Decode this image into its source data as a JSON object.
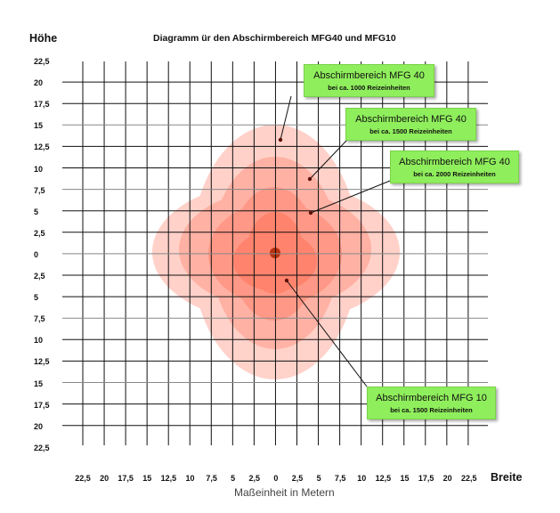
{
  "title": "Diagramm ür den Abschirmbereich MFG40 und MFG10",
  "y_axis_title": "Höhe",
  "x_axis_title": "Breite",
  "unit_label": "Maßeinheit in Metern",
  "y_ticks": [
    "22,5",
    "20",
    "17,5",
    "15",
    "12,5",
    "10",
    "7,5",
    "5",
    "2,5",
    "0",
    "2,5",
    "5",
    "7,5",
    "10",
    "12,5",
    "15",
    "17,5",
    "20",
    "22,5"
  ],
  "x_ticks": [
    "22,5",
    "20",
    "17,5",
    "15",
    "12,5",
    "10",
    "7,5",
    "5",
    "2,5",
    "0",
    "2,5",
    "5",
    "7,5",
    "10",
    "12,5",
    "15",
    "17,5",
    "20",
    "22,5"
  ],
  "callouts": [
    {
      "title": "Abschirmbereich MFG 40",
      "subtitle": "bei ca. 1000 Reizeinheiten"
    },
    {
      "title": "Abschirmbereich MFG 40",
      "subtitle": "bei ca. 1500 Reizeinheiten"
    },
    {
      "title": "Abschirmbereich MFG 40",
      "subtitle": "bei ca. 2000 Reizeinheiten"
    },
    {
      "title": "Abschirmbereich MFG 10",
      "subtitle": "bei ca. 1500 Reizeinheiten"
    }
  ],
  "colors": {
    "callout": "#8fee5c",
    "zone": "#ff6a50",
    "center": "#b8300f",
    "grid": "#111111"
  }
}
